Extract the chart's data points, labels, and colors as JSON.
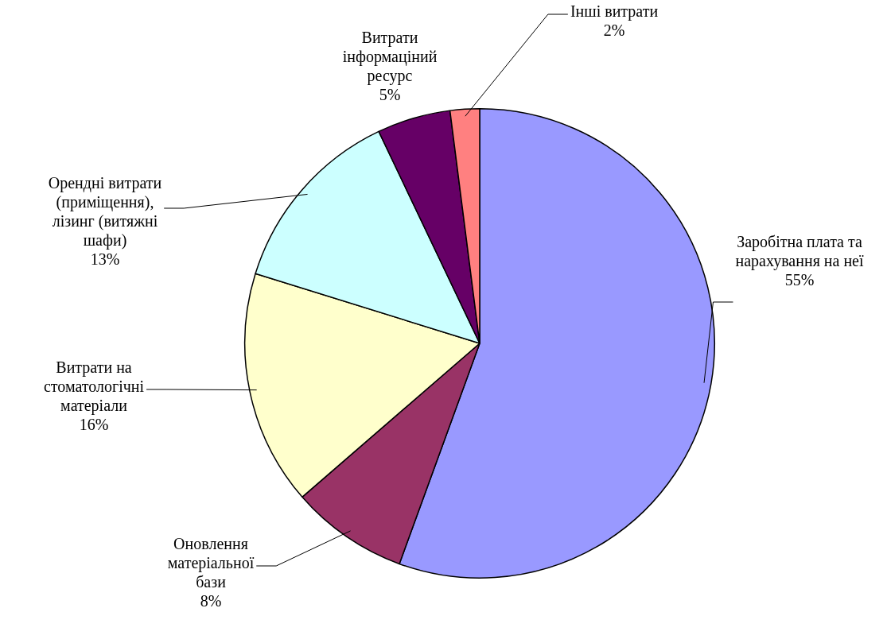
{
  "chart_data": {
    "type": "pie",
    "categories": [
      "Заробітна плата та нарахування на неї",
      "Оновлення матеріальної бази",
      "Витрати на стоматологічні матеріали",
      "Орендні витрати (приміщення), лізинг (витяжні шафи)",
      "Витрати інформаціний ресурс",
      "Інші витрати"
    ],
    "values": [
      55,
      8,
      16,
      13,
      5,
      2
    ],
    "value_labels": [
      "55%",
      "8%",
      "16%",
      "13%",
      "5%",
      "2%"
    ],
    "colors": [
      "#9999ff",
      "#993366",
      "#ffffcc",
      "#ccffff",
      "#660066",
      "#ff8080"
    ],
    "legend": false
  }
}
